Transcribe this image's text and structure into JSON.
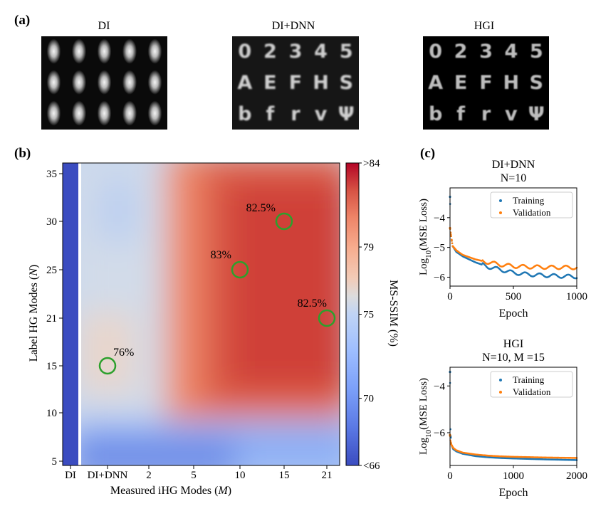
{
  "panel_a": {
    "label": "(a)",
    "titles": [
      "DI",
      "DI+DNN",
      "HGI"
    ],
    "glyph_rows": [
      [
        "0",
        "2",
        "3",
        "4",
        "5"
      ],
      [
        "A",
        "E",
        "F",
        "H",
        "S"
      ],
      [
        "b",
        "f",
        "r",
        "v",
        "Ψ"
      ]
    ]
  },
  "panel_b": {
    "label": "(b)"
  },
  "panel_c": {
    "label": "(c)"
  },
  "colors": {
    "low": "#3b4cc0",
    "mid": "#dddcdc",
    "high": "#b40426",
    "circle": "#2ca02c",
    "training": "#1f77b4",
    "validation": "#ff7f0e"
  },
  "chart_data": [
    {
      "type": "heatmap",
      "xlabel": "Measured iHG Modes (M)",
      "ylabel": "Label HG Modes (N)",
      "x_ticks": [
        "DI",
        "DI+DNN",
        "2",
        "5",
        "10",
        "15",
        "21"
      ],
      "y_ticks": [
        "5",
        "10",
        "15",
        "21",
        "25",
        "30",
        "35"
      ],
      "colorbar": {
        "label": "MS-SSIM (%)",
        "ticks": [
          "<66",
          "70",
          "75",
          "79",
          ">84"
        ],
        "range": [
          66,
          84
        ]
      },
      "annotations": [
        {
          "text": "76%",
          "x": "DI+DNN",
          "y": 15,
          "value": 76
        },
        {
          "text": "83%",
          "x": 10,
          "y": 25,
          "value": 83
        },
        {
          "text": "82.5%",
          "x": 15,
          "y": 30,
          "value": 82.5
        },
        {
          "text": "82.5%",
          "x": 21,
          "y": 21,
          "value": 82.5
        }
      ]
    },
    {
      "type": "line",
      "title": "DI+DNN",
      "subtitle": "N=10",
      "xlabel": "Epoch",
      "ylabel": "Log10(MSE Loss)",
      "xlim": [
        0,
        1000
      ],
      "ylim": [
        -6.3,
        -3.0
      ],
      "x_ticks": [
        "0",
        "500",
        "1000"
      ],
      "y_ticks": [
        "-4",
        "-5",
        "-6"
      ],
      "legend": "top-right",
      "series": [
        {
          "name": "Training",
          "x": [
            0,
            5,
            20,
            50,
            100,
            200,
            300,
            400,
            500,
            600,
            700,
            800,
            900,
            1000
          ],
          "values": [
            -3.3,
            -4.5,
            -4.95,
            -5.15,
            -5.3,
            -5.5,
            -5.65,
            -5.75,
            -5.85,
            -5.9,
            -5.93,
            -5.95,
            -5.97,
            -5.98
          ]
        },
        {
          "name": "Validation",
          "x": [
            0,
            5,
            20,
            50,
            100,
            200,
            300,
            400,
            500,
            600,
            700,
            800,
            900,
            1000
          ],
          "values": [
            -4.35,
            -4.5,
            -4.95,
            -5.1,
            -5.25,
            -5.4,
            -5.5,
            -5.58,
            -5.63,
            -5.65,
            -5.66,
            -5.67,
            -5.67,
            -5.68
          ]
        }
      ]
    },
    {
      "type": "line",
      "title": "HGI",
      "subtitle": "N=10, M =15",
      "xlabel": "Epoch",
      "ylabel": "Log10(MSE Loss)",
      "xlim": [
        0,
        2000
      ],
      "ylim": [
        -7.4,
        -3.2
      ],
      "x_ticks": [
        "0",
        "1000",
        "2000"
      ],
      "y_ticks": [
        "-4",
        "-6"
      ],
      "legend": "top-right",
      "series": [
        {
          "name": "Training",
          "x": [
            0,
            5,
            20,
            50,
            100,
            200,
            400,
            600,
            800,
            1000,
            1500,
            2000
          ],
          "values": [
            -3.4,
            -5.75,
            -6.5,
            -6.7,
            -6.8,
            -6.9,
            -7.0,
            -7.05,
            -7.08,
            -7.1,
            -7.14,
            -7.17
          ]
        },
        {
          "name": "Validation",
          "x": [
            0,
            5,
            20,
            50,
            100,
            200,
            400,
            600,
            800,
            1000,
            1500,
            2000
          ],
          "values": [
            -6.1,
            -6.3,
            -6.5,
            -6.65,
            -6.75,
            -6.85,
            -6.93,
            -6.98,
            -7.01,
            -7.03,
            -7.06,
            -7.08
          ]
        }
      ]
    }
  ]
}
